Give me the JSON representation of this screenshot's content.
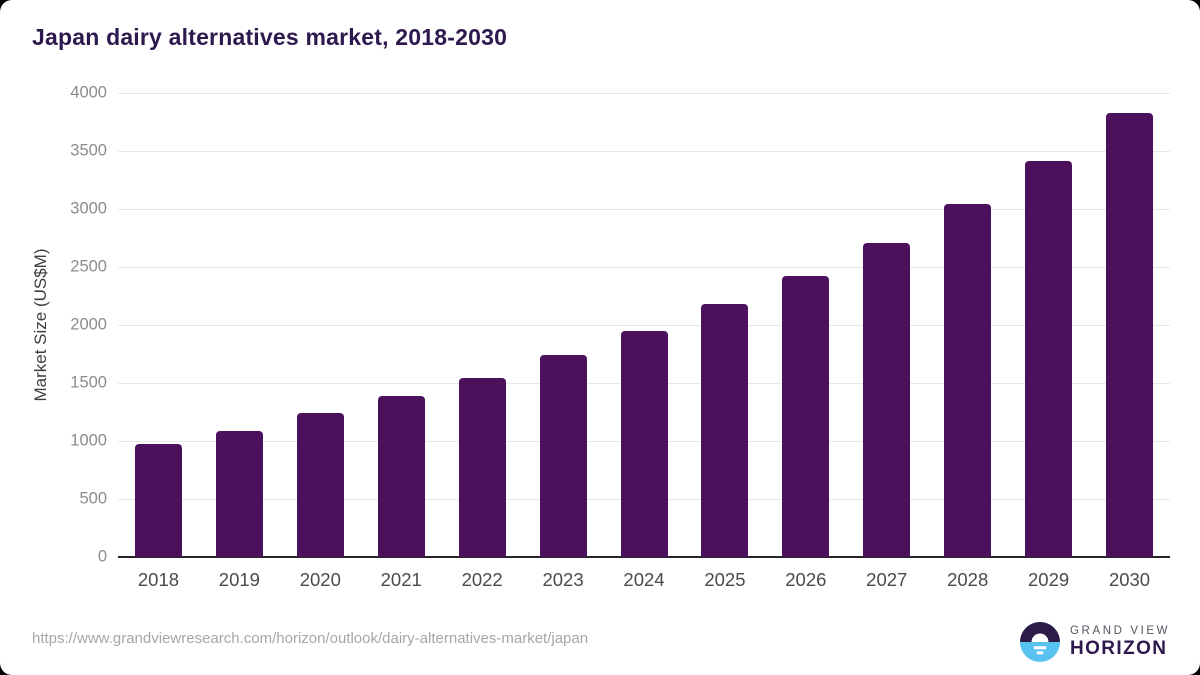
{
  "chart_data": {
    "type": "bar",
    "title": "Japan dairy alternatives market, 2018-2030",
    "categories": [
      "2018",
      "2019",
      "2020",
      "2021",
      "2022",
      "2023",
      "2024",
      "2025",
      "2026",
      "2027",
      "2028",
      "2029",
      "2030"
    ],
    "values": [
      970,
      1090,
      1240,
      1390,
      1545,
      1740,
      1945,
      2180,
      2420,
      2710,
      3045,
      3410,
      3830
    ],
    "xlabel": "",
    "ylabel": "Market Size (US$M)",
    "ylim": [
      0,
      4000
    ],
    "yticks": [
      0,
      500,
      1000,
      1500,
      2000,
      2500,
      3000,
      3500,
      4000
    ],
    "grid": "horizontal",
    "legend": "none"
  },
  "footer": {
    "url": "https://www.grandviewresearch.com/horizon/outlook/dairy-alternatives-market/japan"
  },
  "logo": {
    "top": "GRAND VIEW",
    "bottom": "HORIZON"
  },
  "colors": {
    "bar": "#4B115C",
    "title": "#2D194D",
    "y_axis_title": "#3D3D3D",
    "y_tick": "#8C8C8C",
    "x_tick": "#4B4B4B",
    "gridline": "#E8E8E8",
    "axis_line": "#262626",
    "url_text": "#A6A6A6",
    "logo_gray": "#54545E",
    "logo_dark": "#2E1A47",
    "logo_blue": "#58C3EF"
  }
}
